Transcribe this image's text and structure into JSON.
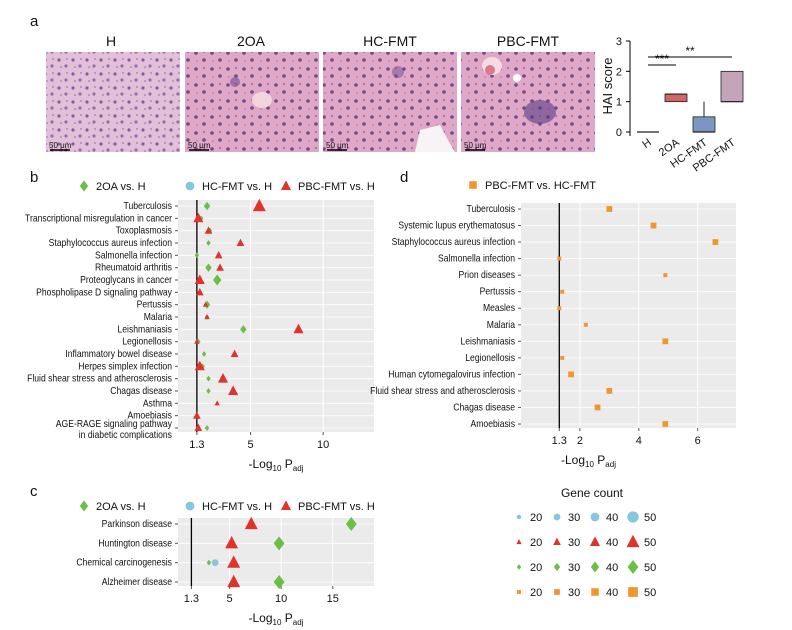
{
  "panel_labels": {
    "a": "a",
    "b": "b",
    "c": "c",
    "d": "d"
  },
  "micrographs": {
    "titles": [
      "H",
      "2OA",
      "HC-FMT",
      "PBC-FMT"
    ],
    "scale_bar": "50 μm"
  },
  "colors": {
    "oa": "#6abf45",
    "hc": "#87c6e0",
    "pbc": "#e2332b",
    "pbc_vs_hc": "#f0962e",
    "plot_bg": "#ebebeb",
    "box_2oa": "#d16667",
    "box_hc": "#7b96c2",
    "box_pbc": "#c4a4b9"
  },
  "chart_data": [
    {
      "id": "hai",
      "type": "box",
      "ylabel": "HAI score",
      "ylim": [
        0,
        3
      ],
      "yticks": [
        "0",
        "1",
        "2",
        "3"
      ],
      "categories": [
        "H",
        "2OA",
        "HC-FMT",
        "PBC-FMT"
      ],
      "boxes": [
        {
          "min": 0,
          "q1": 0,
          "median": 0,
          "q3": 0,
          "max": 0
        },
        {
          "min": 1,
          "q1": 1,
          "median": 1.25,
          "q3": 1.25,
          "max": 1.25
        },
        {
          "min": 0,
          "q1": 0,
          "median": 0,
          "q3": 0.5,
          "max": 1
        },
        {
          "min": 1,
          "q1": 1,
          "median": 1,
          "q3": 2,
          "max": 2
        }
      ],
      "significance": [
        {
          "from": "H",
          "to": "2OA",
          "label": "***"
        },
        {
          "from": "H",
          "to": "PBC-FMT",
          "label": "**"
        }
      ]
    },
    {
      "id": "b",
      "type": "scatter",
      "legend": [
        "2OA vs. H",
        "HC-FMT vs. H",
        "PBC-FMT vs. H"
      ],
      "categories": [
        "Tuberculosis",
        "Transcriptional misregulation in cancer",
        "Toxoplasmosis",
        "Staphylococcus aureus infection",
        "Salmonella infection",
        "Rheumatoid arthritis",
        "Proteoglycans in cancer",
        "Phospholipase D signaling pathway",
        "Pertussis",
        "Malaria",
        "Leishmaniasis",
        "Legionellosis",
        "Inflammatory bowel disease",
        "Herpes simplex infection",
        "Fluid shear stress and atherosclerosis",
        "Chagas disease",
        "Asthma",
        "Amoebiasis",
        "AGE-RAGE signaling pathway|in diabetic complications"
      ],
      "xticks": [
        "1.3",
        "5",
        "10"
      ],
      "xlim": [
        0,
        13.5
      ],
      "xlabel": "-Log",
      "xlabel_sub1": "10",
      "xlabel_mid": " P",
      "xlabel_sub2": "adj",
      "series": [
        {
          "name": "2OA vs. H",
          "values": [
            2.0,
            1.6,
            2.2,
            2.1,
            1.3,
            2.1,
            2.7,
            1.5,
            2.0,
            2.0,
            4.5,
            1.4,
            1.8,
            1.7,
            2.1,
            2.1,
            null,
            null,
            2.0
          ],
          "sizes": [
            30,
            20,
            20,
            20,
            20,
            30,
            40,
            20,
            30,
            20,
            30,
            20,
            20,
            20,
            20,
            20,
            null,
            null,
            20
          ]
        },
        {
          "name": "HC-FMT vs. H",
          "values": [
            null,
            null,
            null,
            null,
            null,
            null,
            null,
            null,
            null,
            null,
            null,
            null,
            null,
            null,
            null,
            null,
            null,
            null,
            null
          ],
          "sizes": []
        },
        {
          "name": "PBC-FMT vs. H",
          "values": [
            5.6,
            1.4,
            2.1,
            4.3,
            2.8,
            2.9,
            1.5,
            1.5,
            1.9,
            2.0,
            8.3,
            1.3,
            3.9,
            1.5,
            3.1,
            3.8,
            2.7,
            1.3,
            1.4
          ],
          "sizes": [
            50,
            40,
            30,
            30,
            30,
            30,
            40,
            30,
            20,
            20,
            40,
            20,
            30,
            40,
            40,
            40,
            20,
            30,
            30
          ]
        }
      ]
    },
    {
      "id": "c",
      "type": "scatter",
      "legend": [
        "2OA vs. H",
        "HC-FMT vs. H",
        "PBC-FMT vs. H"
      ],
      "categories": [
        "Parkinson disease",
        "Huntington disease",
        "Chemical carcinogenesis",
        "Alzheimer disease"
      ],
      "xticks": [
        "1.3",
        "5",
        "10",
        "15"
      ],
      "xlim": [
        0,
        19
      ],
      "xlabel": "-Log",
      "xlabel_sub1": "10",
      "xlabel_mid": " P",
      "xlabel_sub2": "adj",
      "series": [
        {
          "name": "2OA vs. H",
          "values": [
            16.8,
            9.8,
            3.0,
            9.8
          ],
          "sizes": [
            50,
            50,
            20,
            50
          ]
        },
        {
          "name": "HC-FMT vs. H",
          "values": [
            null,
            null,
            3.6,
            null
          ],
          "sizes": [
            null,
            null,
            30,
            null
          ]
        },
        {
          "name": "PBC-FMT vs. H",
          "values": [
            7.1,
            5.2,
            5.4,
            5.4
          ],
          "sizes": [
            50,
            50,
            50,
            50
          ]
        }
      ]
    },
    {
      "id": "d",
      "type": "scatter",
      "legend": [
        "PBC-FMT vs. HC-FMT"
      ],
      "categories": [
        "Tuberculosis",
        "Systemic lupus erythematosus",
        "Staphylococcus aureus infection",
        "Salmonella infection",
        "Prion diseases",
        "Pertussis",
        "Measles",
        "Malaria",
        "Leishmaniasis",
        "Legionellosis",
        "Human cytomegalovirus infection",
        "Fluid shear stress and atherosclerosis",
        "Chagas disease",
        "Amoebiasis"
      ],
      "xticks": [
        "1.3",
        "2",
        "4",
        "6"
      ],
      "xlim": [
        0,
        7.3
      ],
      "xlabel": "-Log",
      "xlabel_sub1": "10",
      "xlabel_mid": " P",
      "xlabel_sub2": "adj",
      "series": [
        {
          "name": "PBC-FMT vs. HC-FMT",
          "values": [
            3.0,
            4.5,
            6.6,
            1.3,
            4.9,
            1.4,
            1.3,
            2.2,
            4.9,
            1.4,
            1.7,
            3.0,
            2.6,
            4.9
          ],
          "sizes": [
            30,
            30,
            30,
            20,
            20,
            20,
            20,
            20,
            30,
            20,
            30,
            30,
            30,
            30
          ]
        }
      ]
    }
  ],
  "gene_count": {
    "title": "Gene count",
    "values": [
      "20",
      "30",
      "40",
      "50"
    ]
  }
}
